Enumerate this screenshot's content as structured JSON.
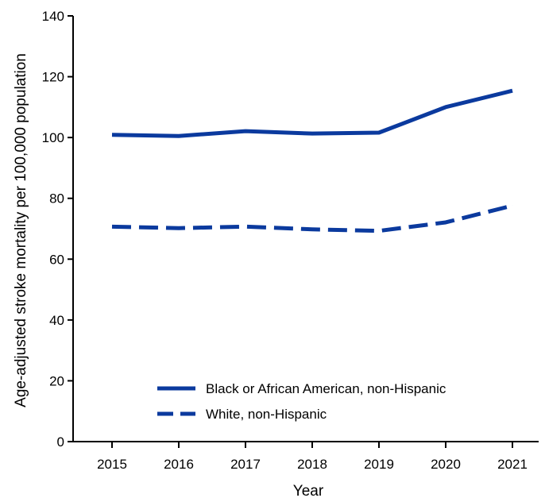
{
  "chart_data": {
    "type": "line",
    "x": [
      2015,
      2016,
      2017,
      2018,
      2019,
      2020,
      2021
    ],
    "series": [
      {
        "name": "Black or African American, non-Hispanic",
        "values": [
          100.9,
          100.5,
          102.1,
          101.3,
          101.6,
          110.0,
          115.4
        ],
        "style": "solid",
        "color": "#0b3a9e"
      },
      {
        "name": "White, non-Hispanic",
        "values": [
          70.7,
          70.2,
          70.7,
          69.8,
          69.3,
          72.1,
          77.6
        ],
        "style": "dashed",
        "color": "#0b3a9e"
      }
    ],
    "xlabel": "Year",
    "ylabel": "Age-adjusted  stroke mortality per 100,000 population",
    "ylim": [
      0,
      140
    ],
    "yticks": [
      0,
      20,
      40,
      60,
      80,
      100,
      120,
      140
    ],
    "grid": false,
    "legend_position": "bottom-center"
  }
}
